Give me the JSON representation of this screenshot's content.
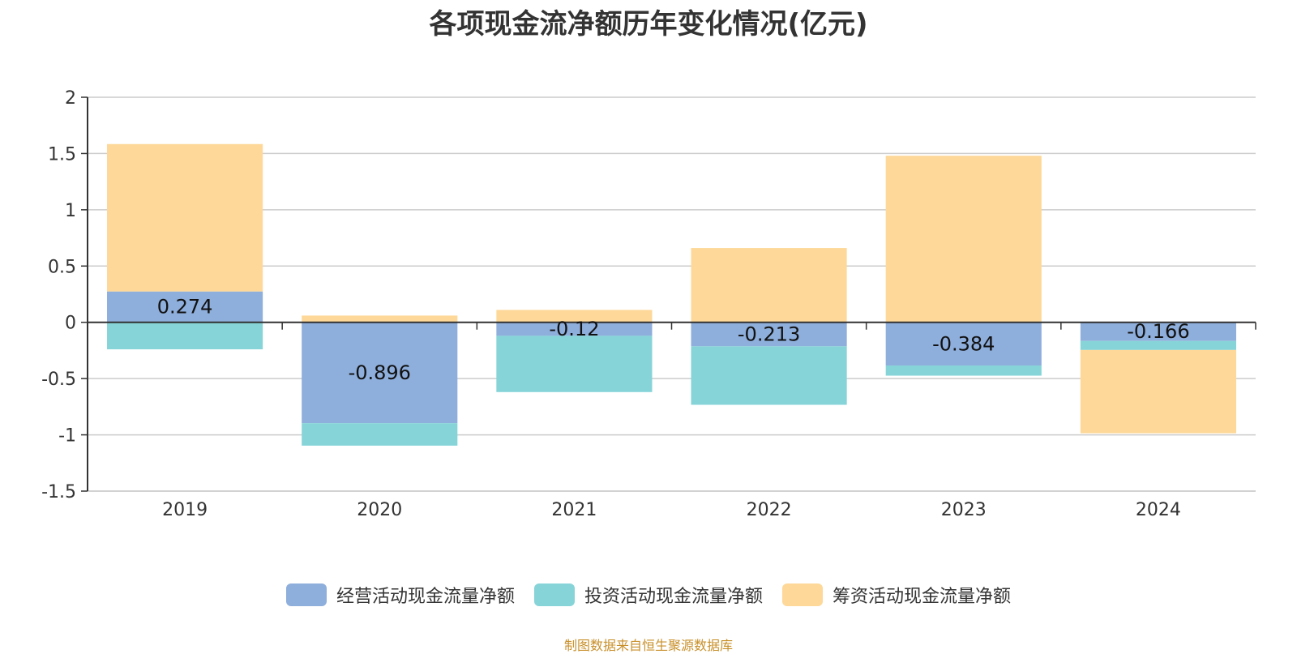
{
  "title": "各项现金流净额历年变化情况(亿元)",
  "source": "制图数据来自恒生聚源数据库",
  "colors": {
    "operating": "#8eaedb",
    "investing": "#86d4d8",
    "financing": "#fdd898"
  },
  "chart_data": {
    "type": "bar",
    "stacked": true,
    "categories": [
      "2019",
      "2020",
      "2021",
      "2022",
      "2023",
      "2024"
    ],
    "series": [
      {
        "name": "经营活动现金流量净额",
        "key": "operating",
        "values": [
          0.274,
          -0.896,
          -0.12,
          -0.213,
          -0.384,
          -0.166
        ]
      },
      {
        "name": "投资活动现金流量净额",
        "key": "investing",
        "values": [
          -0.24,
          -0.2,
          -0.5,
          -0.52,
          -0.09,
          -0.08
        ]
      },
      {
        "name": "筹资活动现金流量净额",
        "key": "financing",
        "values": [
          1.31,
          0.06,
          0.11,
          0.66,
          1.48,
          -0.74
        ]
      }
    ],
    "data_labels_series": "operating",
    "ylim": [
      -1.5,
      2
    ],
    "yticks": [
      "2",
      "1.5",
      "1",
      "0.5",
      "0",
      "-0.5",
      "-1",
      "-1.5"
    ],
    "grid": true,
    "legend_position": "bottom"
  }
}
